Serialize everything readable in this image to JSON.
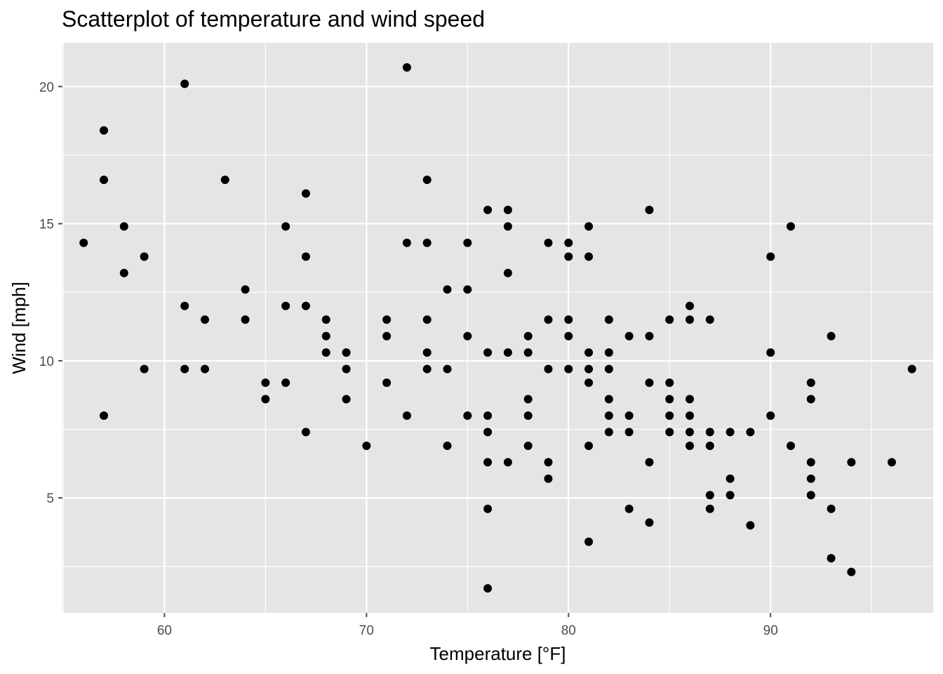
{
  "chart_data": {
    "type": "scatter",
    "title": "Scatterplot of temperature and wind speed",
    "xlabel": "Temperature [°F]",
    "ylabel": "Wind [mph]",
    "xlim": [
      54.95,
      98.05
    ],
    "ylim": [
      0.805,
      21.595
    ],
    "x_ticks": [
      60,
      70,
      80,
      90
    ],
    "x_tick_labels": [
      "60",
      "70",
      "80",
      "90"
    ],
    "x_minor_ticks": [
      55,
      65,
      75,
      85,
      95
    ],
    "y_ticks": [
      5,
      10,
      15,
      20
    ],
    "y_tick_labels": [
      "5",
      "10",
      "15",
      "20"
    ],
    "y_minor_ticks": [
      2.5,
      7.5,
      12.5,
      17.5
    ],
    "grid": true,
    "legend": "none",
    "colors": {
      "panel": "#e5e5e5",
      "grid": "#ffffff",
      "point": "#000000",
      "tick": "#4d4d4d"
    },
    "points": [
      {
        "x": 56,
        "y": 14.3
      },
      {
        "x": 57,
        "y": 18.4
      },
      {
        "x": 57,
        "y": 16.6
      },
      {
        "x": 57,
        "y": 8.0
      },
      {
        "x": 58,
        "y": 14.9
      },
      {
        "x": 58,
        "y": 13.2
      },
      {
        "x": 59,
        "y": 13.8
      },
      {
        "x": 59,
        "y": 9.7
      },
      {
        "x": 61,
        "y": 20.1
      },
      {
        "x": 61,
        "y": 12.0
      },
      {
        "x": 61,
        "y": 9.7
      },
      {
        "x": 62,
        "y": 11.5
      },
      {
        "x": 62,
        "y": 9.7
      },
      {
        "x": 63,
        "y": 16.6
      },
      {
        "x": 64,
        "y": 12.6
      },
      {
        "x": 64,
        "y": 11.5
      },
      {
        "x": 65,
        "y": 9.2
      },
      {
        "x": 65,
        "y": 8.6
      },
      {
        "x": 66,
        "y": 14.9
      },
      {
        "x": 66,
        "y": 12.0
      },
      {
        "x": 66,
        "y": 9.2
      },
      {
        "x": 67,
        "y": 16.1
      },
      {
        "x": 67,
        "y": 13.8
      },
      {
        "x": 67,
        "y": 12.0
      },
      {
        "x": 67,
        "y": 7.4
      },
      {
        "x": 68,
        "y": 11.5
      },
      {
        "x": 68,
        "y": 10.9
      },
      {
        "x": 68,
        "y": 10.3
      },
      {
        "x": 69,
        "y": 10.3
      },
      {
        "x": 69,
        "y": 9.7
      },
      {
        "x": 69,
        "y": 8.6
      },
      {
        "x": 70,
        "y": 6.9
      },
      {
        "x": 71,
        "y": 11.5
      },
      {
        "x": 71,
        "y": 10.9
      },
      {
        "x": 71,
        "y": 9.2
      },
      {
        "x": 72,
        "y": 20.7
      },
      {
        "x": 72,
        "y": 14.3
      },
      {
        "x": 72,
        "y": 8.0
      },
      {
        "x": 73,
        "y": 16.6
      },
      {
        "x": 73,
        "y": 14.3
      },
      {
        "x": 73,
        "y": 11.5
      },
      {
        "x": 73,
        "y": 10.3
      },
      {
        "x": 73,
        "y": 9.7
      },
      {
        "x": 74,
        "y": 12.6
      },
      {
        "x": 74,
        "y": 9.7
      },
      {
        "x": 74,
        "y": 6.9
      },
      {
        "x": 75,
        "y": 14.3
      },
      {
        "x": 75,
        "y": 12.6
      },
      {
        "x": 75,
        "y": 10.9
      },
      {
        "x": 75,
        "y": 8.0
      },
      {
        "x": 76,
        "y": 15.5
      },
      {
        "x": 76,
        "y": 10.3
      },
      {
        "x": 76,
        "y": 8.0
      },
      {
        "x": 76,
        "y": 7.4
      },
      {
        "x": 76,
        "y": 6.3
      },
      {
        "x": 76,
        "y": 4.6
      },
      {
        "x": 76,
        "y": 1.7
      },
      {
        "x": 77,
        "y": 15.5
      },
      {
        "x": 77,
        "y": 14.9
      },
      {
        "x": 77,
        "y": 13.2
      },
      {
        "x": 77,
        "y": 10.3
      },
      {
        "x": 77,
        "y": 6.3
      },
      {
        "x": 78,
        "y": 10.9
      },
      {
        "x": 78,
        "y": 10.3
      },
      {
        "x": 78,
        "y": 8.6
      },
      {
        "x": 78,
        "y": 8.0
      },
      {
        "x": 78,
        "y": 6.9
      },
      {
        "x": 79,
        "y": 14.3
      },
      {
        "x": 79,
        "y": 11.5
      },
      {
        "x": 79,
        "y": 9.7
      },
      {
        "x": 79,
        "y": 6.3
      },
      {
        "x": 79,
        "y": 5.7
      },
      {
        "x": 80,
        "y": 14.3
      },
      {
        "x": 80,
        "y": 13.8
      },
      {
        "x": 80,
        "y": 11.5
      },
      {
        "x": 80,
        "y": 10.9
      },
      {
        "x": 80,
        "y": 9.7
      },
      {
        "x": 81,
        "y": 14.9
      },
      {
        "x": 81,
        "y": 13.8
      },
      {
        "x": 81,
        "y": 10.3
      },
      {
        "x": 81,
        "y": 9.7
      },
      {
        "x": 81,
        "y": 9.2
      },
      {
        "x": 81,
        "y": 6.9
      },
      {
        "x": 81,
        "y": 3.4
      },
      {
        "x": 82,
        "y": 11.5
      },
      {
        "x": 82,
        "y": 10.3
      },
      {
        "x": 82,
        "y": 9.7
      },
      {
        "x": 82,
        "y": 8.6
      },
      {
        "x": 82,
        "y": 8.0
      },
      {
        "x": 82,
        "y": 7.4
      },
      {
        "x": 83,
        "y": 10.9
      },
      {
        "x": 83,
        "y": 8.0
      },
      {
        "x": 83,
        "y": 7.4
      },
      {
        "x": 83,
        "y": 4.6
      },
      {
        "x": 84,
        "y": 15.5
      },
      {
        "x": 84,
        "y": 10.9
      },
      {
        "x": 84,
        "y": 9.2
      },
      {
        "x": 84,
        "y": 6.3
      },
      {
        "x": 84,
        "y": 4.1
      },
      {
        "x": 85,
        "y": 11.5
      },
      {
        "x": 85,
        "y": 9.2
      },
      {
        "x": 85,
        "y": 8.6
      },
      {
        "x": 85,
        "y": 8.0
      },
      {
        "x": 85,
        "y": 7.4
      },
      {
        "x": 86,
        "y": 12.0
      },
      {
        "x": 86,
        "y": 11.5
      },
      {
        "x": 86,
        "y": 8.6
      },
      {
        "x": 86,
        "y": 8.0
      },
      {
        "x": 86,
        "y": 7.4
      },
      {
        "x": 86,
        "y": 6.9
      },
      {
        "x": 87,
        "y": 11.5
      },
      {
        "x": 87,
        "y": 7.4
      },
      {
        "x": 87,
        "y": 6.9
      },
      {
        "x": 87,
        "y": 5.1
      },
      {
        "x": 87,
        "y": 4.6
      },
      {
        "x": 88,
        "y": 7.4
      },
      {
        "x": 88,
        "y": 5.7
      },
      {
        "x": 88,
        "y": 5.1
      },
      {
        "x": 89,
        "y": 7.4
      },
      {
        "x": 89,
        "y": 4.0
      },
      {
        "x": 90,
        "y": 13.8
      },
      {
        "x": 90,
        "y": 10.3
      },
      {
        "x": 90,
        "y": 8.0
      },
      {
        "x": 91,
        "y": 14.9
      },
      {
        "x": 91,
        "y": 6.9
      },
      {
        "x": 92,
        "y": 9.2
      },
      {
        "x": 92,
        "y": 8.6
      },
      {
        "x": 92,
        "y": 6.3
      },
      {
        "x": 92,
        "y": 5.7
      },
      {
        "x": 92,
        "y": 5.1
      },
      {
        "x": 93,
        "y": 10.9
      },
      {
        "x": 93,
        "y": 4.6
      },
      {
        "x": 93,
        "y": 2.8
      },
      {
        "x": 94,
        "y": 6.3
      },
      {
        "x": 94,
        "y": 2.3
      },
      {
        "x": 96,
        "y": 6.3
      },
      {
        "x": 97,
        "y": 9.7
      }
    ]
  }
}
